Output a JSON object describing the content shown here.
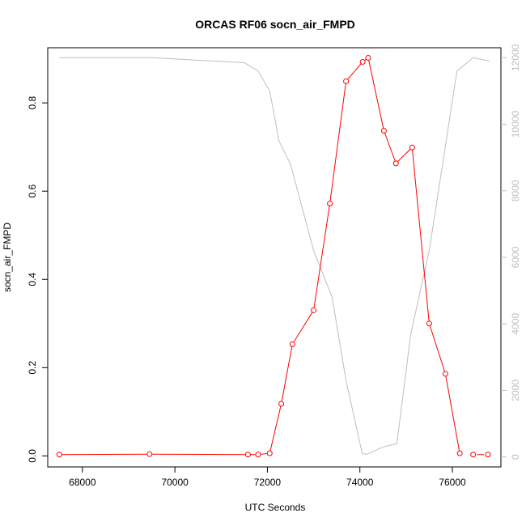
{
  "chart_data": {
    "type": "line",
    "title": "ORCAS RF06 socn_air_FMPD",
    "xlabel": "UTC Seconds",
    "ylabel": "socn_air_FMPD",
    "xlim": [
      67250,
      77050
    ],
    "ylim": [
      -0.025,
      0.925
    ],
    "y2lim": [
      -300,
      12300
    ],
    "x_ticks": [
      "68000",
      "70000",
      "72000",
      "74000",
      "76000"
    ],
    "y_ticks": [
      "0.0",
      "0.2",
      "0.4",
      "0.6",
      "0.8"
    ],
    "y2_ticks": [
      "0",
      "2000",
      "4000",
      "6000",
      "8000",
      "10000",
      "12000"
    ],
    "grid": false,
    "series": [
      {
        "role": "primary",
        "color": "#ff0000",
        "marker": "open-circle",
        "x": [
          67500,
          69450,
          71580,
          71800,
          72050,
          72300,
          72540,
          73000,
          73350,
          73700,
          74060,
          74180,
          74520,
          74780,
          75130,
          75500,
          75850,
          76160,
          76450,
          76770
        ],
        "y": [
          0.003,
          0.004,
          0.003,
          0.003,
          0.006,
          0.118,
          0.253,
          0.33,
          0.572,
          0.849,
          0.893,
          0.902,
          0.737,
          0.663,
          0.699,
          0.3,
          0.186,
          0.006,
          0.003,
          0.003
        ],
        "line_break_after_index": 17
      },
      {
        "role": "secondary-axis",
        "color": "#bebebe",
        "x": [
          67500,
          69500,
          71500,
          71800,
          72050,
          72250,
          72500,
          73000,
          73400,
          73700,
          74050,
          74150,
          74500,
          74800,
          75100,
          75500,
          76100,
          76450,
          76800
        ],
        "y": [
          12000,
          12000,
          11850,
          11600,
          11000,
          9500,
          8800,
          6200,
          4800,
          2300,
          100,
          80,
          300,
          400,
          3700,
          6200,
          11600,
          12000,
          11900
        ]
      }
    ]
  }
}
